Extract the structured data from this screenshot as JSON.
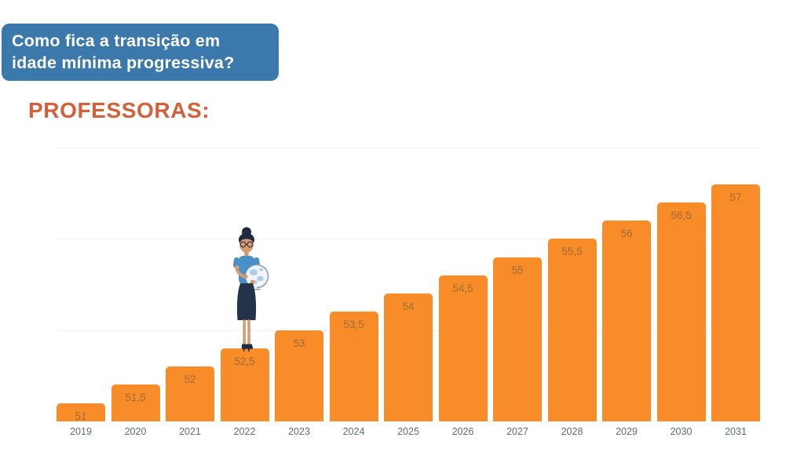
{
  "page": {
    "background": "#FFFFFF"
  },
  "header_box": {
    "line1": "Como fica a transição em",
    "line2": "idade mínima progressiva?",
    "bg_color": "#3B79AC",
    "text_color": "#FFFFFF"
  },
  "section": {
    "title": "PROFESSORAS:",
    "color": "#D4603A"
  },
  "chart_data": {
    "type": "bar",
    "title": "PROFESSORAS:",
    "categories": [
      "2019",
      "2020",
      "2021",
      "2022",
      "2023",
      "2024",
      "2025",
      "2026",
      "2027",
      "2028",
      "2029",
      "2030",
      "2031"
    ],
    "values": [
      51,
      51.5,
      52,
      52.5,
      53,
      53.5,
      54,
      54.5,
      55,
      55.5,
      56,
      56.5,
      57
    ],
    "value_labels": [
      "51",
      "51,5",
      "52",
      "52,5",
      "53",
      "53,5",
      "54",
      "54,5",
      "55",
      "55,5",
      "56",
      "56,5",
      "57"
    ],
    "xlabel": "",
    "ylabel": "",
    "ylim": [
      50.5,
      58
    ],
    "gridline_values": [
      53,
      55.5,
      58
    ],
    "grid": true,
    "legend_position": "none",
    "bar_color": "#F78C28",
    "value_label_color": "rgba(90,80,68,0.55)",
    "axis_label_color": "#5F6B7A",
    "gridline_color": "#F1F1F1"
  },
  "illustration": {
    "name": "teacher-holding-globe",
    "standing_on_category": "2022",
    "colors": {
      "hair": "#1F2B3F",
      "skin": "#D79A70",
      "shirt": "#4A90C6",
      "skirt": "#24324A",
      "globe": "#F2F5F8",
      "continents": "#AECCE7",
      "stand": "#97A3AD",
      "outline": "#1F2B3F"
    }
  }
}
